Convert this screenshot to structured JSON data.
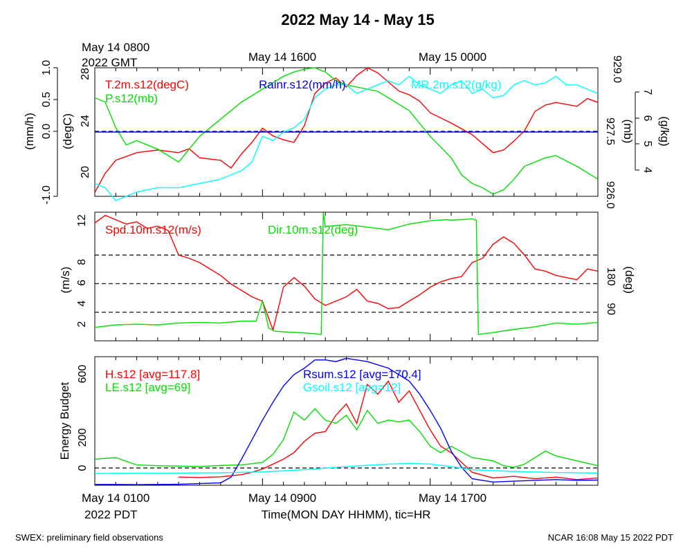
{
  "title": "2022 May 14 - May 15",
  "footer": {
    "left": "SWEX: preliminary field observations",
    "right": "NCAR 16:08 May 15 2022 PDT"
  },
  "colors": {
    "red": "#ff0000",
    "green": "#00e000",
    "blue": "#0000ff",
    "cyan": "#00ffff"
  },
  "top_axis": {
    "labels": [
      "May 14 0800",
      "May 14 1600",
      "May 15 0000"
    ],
    "sublabel": "2022 GMT"
  },
  "bottom_axis": {
    "labels": [
      "May 14 0100",
      "May 14 0900",
      "May 14 1700"
    ],
    "sublabel": "2022 PDT",
    "xlabel": "Time(MON DAY HHMM), tic=HR"
  },
  "chart_data": [
    {
      "type": "line",
      "x_unit": "hours since May 14 0000 PDT",
      "xlim": [
        1,
        25
      ],
      "legend": [
        "T.2m.s12(degC)",
        "P.s12(mb)",
        "Rainr.s12(mm/h)",
        "MR.2m.s12(g/kg)"
      ],
      "axes": {
        "rain": {
          "label": "(mm/h)",
          "ylim": [
            -1.0,
            1.0
          ],
          "ticks": [
            "-1.0",
            "0.0",
            "0.5",
            "1.0"
          ]
        },
        "temp": {
          "label": "(degC)",
          "ylim": [
            18,
            28
          ],
          "ticks": [
            "20",
            "24",
            "28"
          ]
        },
        "pres": {
          "label": "(mb)",
          "ylim": [
            926.0,
            929.0
          ],
          "ticks": [
            "926.0",
            "927.5",
            "929.0"
          ]
        },
        "mr": {
          "label": "(g/kg)",
          "ylim": [
            4,
            7
          ],
          "ticks": [
            "4",
            "5",
            "6",
            "7"
          ]
        }
      },
      "series": [
        {
          "name": "T.2m.s12(degC)",
          "axis": "temp",
          "color": "#ff0000",
          "x": [
            1,
            1.5,
            2,
            3,
            4,
            5,
            5.5,
            6,
            7,
            7.5,
            8,
            8.5,
            9,
            9.5,
            10,
            10.5,
            11,
            11.5,
            12,
            12.5,
            13,
            13.5,
            14,
            14.5,
            15,
            15.5,
            16,
            16.5,
            17,
            18,
            19,
            20,
            20.5,
            21,
            21.5,
            22,
            22.5,
            23,
            24,
            24.5,
            25
          ],
          "y": [
            18.3,
            19.8,
            20.8,
            21.4,
            21.6,
            21.4,
            21.7,
            21.0,
            20.8,
            20.2,
            21.3,
            22.2,
            23.3,
            22.7,
            22.4,
            22.2,
            23.5,
            26.0,
            26.8,
            27.2,
            26.5,
            27.4,
            28.0,
            27.6,
            26.9,
            26.2,
            25.9,
            25.4,
            24.5,
            23.7,
            22.8,
            21.4,
            21.6,
            22.3,
            23.1,
            24.6,
            25.1,
            25.3,
            25.0,
            25.6,
            25.3
          ]
        },
        {
          "name": "P.s12(mb)",
          "axis": "pres",
          "color": "#00e000",
          "x": [
            1,
            1.5,
            2,
            2.5,
            3,
            4,
            5,
            6,
            7,
            8,
            9,
            10,
            10.5,
            11,
            11.5,
            12,
            12.5,
            13,
            13.5,
            14,
            14.5,
            15,
            16,
            17,
            18,
            18.5,
            19,
            19.5,
            20,
            20.5,
            21,
            21.5,
            22,
            22.5,
            23,
            24,
            25
          ],
          "y": [
            928.3,
            928.2,
            927.6,
            927.2,
            927.3,
            927.1,
            926.8,
            927.4,
            927.8,
            928.2,
            928.5,
            928.8,
            928.9,
            928.97,
            929.0,
            928.9,
            928.7,
            928.6,
            928.55,
            928.5,
            928.45,
            928.3,
            928.0,
            927.4,
            926.9,
            926.5,
            926.3,
            926.2,
            926.05,
            926.15,
            926.4,
            926.7,
            926.8,
            926.9,
            926.95,
            926.7,
            926.4
          ]
        },
        {
          "name": "Rainr.s12(mm/h)",
          "axis": "rain",
          "color": "#0000ff",
          "x": [
            1,
            25
          ],
          "y": [
            0,
            0
          ]
        },
        {
          "name": "MR.2m.s12(g/kg)",
          "axis": "mr",
          "color": "#00ffff",
          "x": [
            1,
            1.5,
            2,
            3,
            4,
            5,
            6,
            7,
            8,
            8.5,
            9,
            9.5,
            10,
            10.5,
            11,
            11.5,
            12,
            12.5,
            13,
            13.5,
            14,
            14.5,
            15,
            15.5,
            16,
            16.5,
            17,
            17.5,
            18,
            18.5,
            19,
            19.5,
            20,
            20.5,
            21,
            21.5,
            22,
            22.5,
            23,
            23.5,
            24,
            25
          ],
          "y": [
            4.3,
            4.2,
            3.9,
            4.1,
            4.2,
            4.2,
            4.3,
            4.4,
            4.6,
            4.8,
            5.4,
            5.3,
            5.5,
            5.6,
            5.8,
            6.3,
            6.5,
            6.6,
            6.6,
            6.4,
            6.5,
            6.6,
            6.7,
            6.6,
            6.8,
            6.6,
            6.5,
            6.4,
            6.6,
            6.7,
            6.4,
            6.5,
            6.3,
            6.35,
            6.6,
            6.7,
            6.6,
            6.65,
            6.8,
            6.6,
            6.6,
            6.4
          ]
        }
      ]
    },
    {
      "type": "line",
      "x_unit": "hours since May 14 0000 PDT",
      "xlim": [
        1,
        25
      ],
      "legend": [
        "Spd.10m.s12(m/s)",
        "Dir.10m.s12(deg)"
      ],
      "axes": {
        "spd": {
          "label": "(m/s)",
          "ylim": [
            0.5,
            12.5
          ],
          "ticks": [
            "2",
            "4",
            "6",
            "8",
            "12"
          ]
        },
        "dir": {
          "label": "(deg)",
          "ylim": [
            0,
            405
          ],
          "ticks": [
            "90",
            "180"
          ]
        }
      },
      "ref_lines_deg": [
        90,
        180,
        270
      ],
      "series": [
        {
          "name": "Spd.10m.s12(m/s)",
          "axis": "spd",
          "color": "#ff0000",
          "x": [
            1,
            1.5,
            2,
            2.5,
            3,
            3.5,
            4,
            4.5,
            5,
            5.5,
            6,
            6.5,
            7,
            7.5,
            8,
            8.5,
            9,
            9.5,
            10,
            10.5,
            11,
            11.5,
            12,
            12.5,
            13,
            13.5,
            14,
            14.5,
            15,
            15.5,
            16,
            16.5,
            17,
            17.5,
            18,
            18.5,
            19,
            19.5,
            20,
            20.5,
            21,
            21.5,
            22,
            22.5,
            23,
            23.5,
            24,
            24.5,
            25
          ],
          "y": [
            11.5,
            12.2,
            11.8,
            11.4,
            11.6,
            11.0,
            11.2,
            10.8,
            8.5,
            8.2,
            7.8,
            7.2,
            6.6,
            5.8,
            5.2,
            4.6,
            4.2,
            1.5,
            5.5,
            6.4,
            5.6,
            4.4,
            3.8,
            4.2,
            4.6,
            5.3,
            4.2,
            4.0,
            3.5,
            3.6,
            4.2,
            4.8,
            5.5,
            6.0,
            6.3,
            6.5,
            7.8,
            8.2,
            9.5,
            10.2,
            9.6,
            8.5,
            7.2,
            7.0,
            6.6,
            6.4,
            6.2,
            7.2,
            7.0
          ]
        },
        {
          "name": "Dir.10m.s12(deg)",
          "axis": "dir",
          "color": "#00e000",
          "x": [
            1,
            2,
            3,
            4,
            5,
            6,
            7,
            8,
            8.7,
            9,
            9.3,
            9.6,
            10,
            11,
            11.8,
            11.9,
            12,
            13,
            14,
            15,
            16,
            17,
            17.8,
            18,
            19,
            19.2,
            19.3,
            20,
            21,
            22,
            23,
            24,
            25
          ],
          "y": [
            42,
            50,
            52,
            50,
            56,
            58,
            56,
            62,
            62,
            125,
            40,
            30,
            28,
            25,
            20,
            404,
            360,
            366,
            358,
            350,
            368,
            378,
            382,
            380,
            384,
            380,
            20,
            26,
            36,
            44,
            56,
            52,
            58
          ]
        }
      ]
    },
    {
      "type": "line",
      "x_unit": "hours since May 14 0000 PDT",
      "xlim": [
        1,
        25
      ],
      "ylabel": "Energy Budget",
      "ylim": [
        -80,
        710
      ],
      "yticks": [
        "0",
        "200",
        "600"
      ],
      "legend": [
        "H.s12 [avg=117.8]",
        "LE.s12 [avg=69]",
        "Rsum.s12 [avg=170.4]",
        "Gsoil.s12 [avg=12]"
      ],
      "series": [
        {
          "name": "H.s12 [avg=117.8]",
          "color": "#ff0000",
          "x": [
            5,
            6,
            7,
            8,
            8.5,
            9,
            9.5,
            10,
            10.5,
            11,
            11.5,
            12,
            12.5,
            13,
            13.5,
            14,
            14.5,
            15,
            15.5,
            16,
            16.5,
            17,
            17.5,
            18,
            19,
            20,
            21,
            22,
            23,
            24,
            25
          ],
          "y": [
            -30,
            -32,
            -28,
            -15,
            0,
            20,
            50,
            80,
            120,
            190,
            240,
            250,
            350,
            420,
            300,
            540,
            480,
            560,
            430,
            500,
            380,
            260,
            160,
            120,
            0,
            -35,
            -25,
            -40,
            -30,
            -45,
            -35
          ]
        },
        {
          "name": "LE.s12 [avg=69]",
          "color": "#00e000",
          "x": [
            1,
            2,
            3,
            4,
            5,
            6,
            7,
            8,
            9,
            9.5,
            10,
            10.5,
            11,
            11.5,
            12,
            12.5,
            13,
            13.5,
            14,
            14.5,
            15,
            15.5,
            16,
            16.5,
            17,
            17.5,
            18,
            19,
            20,
            20.5,
            21,
            21.5,
            22,
            22.5,
            23,
            24,
            25
          ],
          "y": [
            80,
            90,
            45,
            40,
            38,
            35,
            42,
            45,
            60,
            110,
            200,
            370,
            320,
            390,
            320,
            300,
            350,
            260,
            380,
            300,
            320,
            310,
            320,
            250,
            160,
            120,
            160,
            90,
            70,
            40,
            30,
            50,
            90,
            130,
            100,
            70,
            40
          ]
        },
        {
          "name": "Rsum.s12 [avg=170.4]",
          "color": "#0000ff",
          "x": [
            1,
            2,
            3,
            4,
            5,
            6,
            7,
            7.5,
            8,
            8.5,
            9,
            9.5,
            10,
            10.5,
            11,
            11.5,
            12,
            12.5,
            13,
            13.5,
            14,
            14.5,
            15,
            15.5,
            16,
            16.5,
            17,
            17.5,
            18,
            18.5,
            19,
            20,
            21,
            22,
            23,
            24,
            25
          ],
          "y": [
            -75,
            -75,
            -76,
            -75,
            -74,
            -70,
            -65,
            -30,
            80,
            200,
            320,
            430,
            530,
            600,
            640,
            690,
            690,
            680,
            700,
            690,
            680,
            660,
            640,
            600,
            560,
            480,
            380,
            270,
            130,
            30,
            -40,
            -60,
            -55,
            -50,
            -45,
            -50,
            -48
          ]
        },
        {
          "name": "Gsoil.s12 [avg=12]",
          "color": "#00ffff",
          "x": [
            1,
            3,
            5,
            7,
            9,
            11,
            13,
            15,
            16,
            17,
            18,
            19,
            21,
            23,
            25
          ],
          "y": [
            -8,
            -6,
            -5,
            -3,
            2,
            15,
            35,
            50,
            55,
            50,
            35,
            15,
            5,
            -2,
            -5
          ]
        }
      ]
    }
  ]
}
